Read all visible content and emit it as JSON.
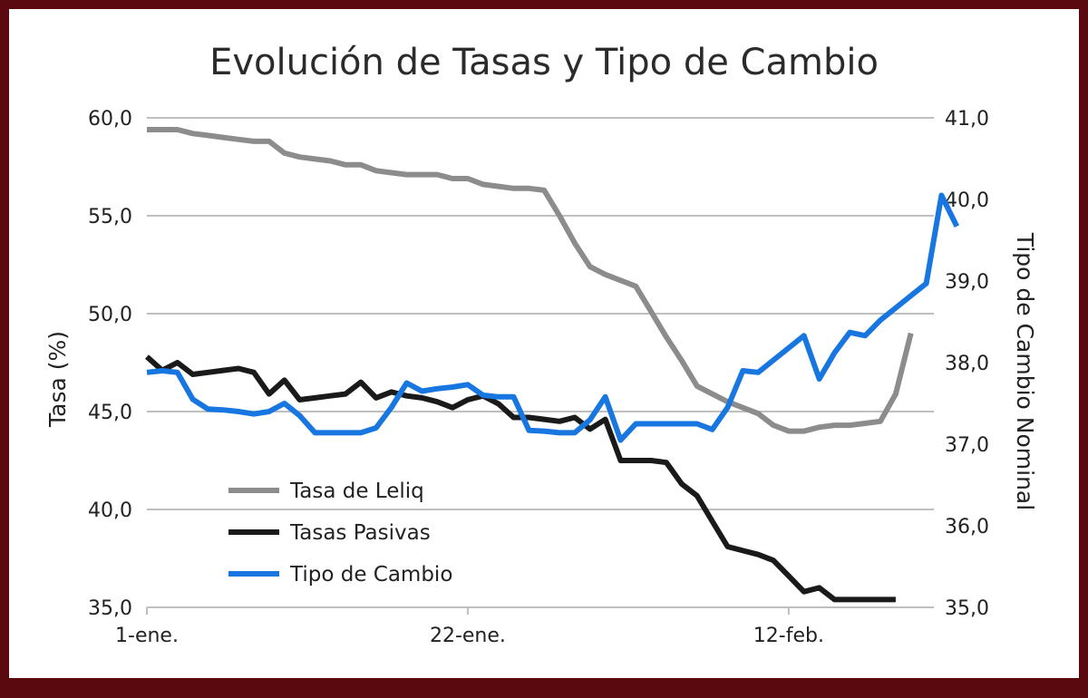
{
  "chart_data": {
    "type": "line",
    "title": "Evolución de Tasas y Tipo de Cambio",
    "ylabel_left": "Tasa (%)",
    "ylabel_right": "Tipo de Cambio Nominal",
    "ylim_left": [
      35,
      60
    ],
    "ylim_right": [
      35,
      41
    ],
    "y_ticks_left": [
      "60,0",
      "55,0",
      "50,0",
      "45,0",
      "40,0",
      "35,0"
    ],
    "y_ticks_right": [
      "41,0",
      "40,0",
      "39,0",
      "38,0",
      "37,0",
      "36,0",
      "35,0"
    ],
    "x_tick_labels": [
      {
        "day": 1,
        "label": "1-ene."
      },
      {
        "day": 22,
        "label": "22-ene."
      },
      {
        "day": 43,
        "label": "12-feb."
      }
    ],
    "x_range_days": [
      1,
      52.5
    ],
    "grid": true,
    "legend_position": "bottom-left",
    "series": [
      {
        "name": "Tasa de Leliq",
        "axis": "left",
        "color": "#8c8c8c",
        "points": [
          [
            1,
            59.4
          ],
          [
            2,
            59.4
          ],
          [
            3,
            59.4
          ],
          [
            4,
            59.2
          ],
          [
            5,
            59.1
          ],
          [
            6,
            59.0
          ],
          [
            7,
            58.9
          ],
          [
            8,
            58.8
          ],
          [
            9,
            58.8
          ],
          [
            10,
            58.2
          ],
          [
            11,
            58.0
          ],
          [
            12,
            57.9
          ],
          [
            13,
            57.8
          ],
          [
            14,
            57.6
          ],
          [
            15,
            57.6
          ],
          [
            16,
            57.3
          ],
          [
            17,
            57.2
          ],
          [
            18,
            57.1
          ],
          [
            19,
            57.1
          ],
          [
            20,
            57.1
          ],
          [
            21,
            56.9
          ],
          [
            22,
            56.9
          ],
          [
            23,
            56.6
          ],
          [
            24,
            56.5
          ],
          [
            25,
            56.4
          ],
          [
            26,
            56.4
          ],
          [
            27,
            56.3
          ],
          [
            28,
            55.0
          ],
          [
            29,
            53.6
          ],
          [
            30,
            52.4
          ],
          [
            31,
            52.0
          ],
          [
            32,
            51.7
          ],
          [
            33,
            51.4
          ],
          [
            34,
            50.1
          ],
          [
            35,
            48.8
          ],
          [
            36,
            47.6
          ],
          [
            37,
            46.3
          ],
          [
            38,
            45.9
          ],
          [
            39,
            45.5
          ],
          [
            40,
            45.2
          ],
          [
            41,
            44.9
          ],
          [
            42,
            44.3
          ],
          [
            43,
            44.0
          ],
          [
            44,
            44.0
          ],
          [
            45,
            44.2
          ],
          [
            46,
            44.3
          ],
          [
            47,
            44.3
          ],
          [
            48,
            44.4
          ],
          [
            49,
            44.5
          ],
          [
            50,
            45.9
          ],
          [
            51,
            49.0
          ]
        ]
      },
      {
        "name": "Tasas Pasivas",
        "axis": "left",
        "color": "#1a1a1a",
        "points": [
          [
            1,
            47.8
          ],
          [
            2,
            47.1
          ],
          [
            3,
            47.5
          ],
          [
            4,
            46.9
          ],
          [
            5,
            47.0
          ],
          [
            6,
            47.1
          ],
          [
            7,
            47.2
          ],
          [
            8,
            47.0
          ],
          [
            9,
            45.9
          ],
          [
            10,
            46.6
          ],
          [
            11,
            45.6
          ],
          [
            12,
            45.7
          ],
          [
            13,
            45.8
          ],
          [
            14,
            45.9
          ],
          [
            15,
            46.5
          ],
          [
            16,
            45.7
          ],
          [
            17,
            46.0
          ],
          [
            18,
            45.8
          ],
          [
            19,
            45.7
          ],
          [
            20,
            45.5
          ],
          [
            21,
            45.2
          ],
          [
            22,
            45.6
          ],
          [
            23,
            45.8
          ],
          [
            24,
            45.4
          ],
          [
            25,
            44.7
          ],
          [
            26,
            44.7
          ],
          [
            27,
            44.6
          ],
          [
            28,
            44.5
          ],
          [
            29,
            44.7
          ],
          [
            30,
            44.1
          ],
          [
            31,
            44.6
          ],
          [
            32,
            42.5
          ],
          [
            33,
            42.5
          ],
          [
            34,
            42.5
          ],
          [
            35,
            42.4
          ],
          [
            36,
            41.3
          ],
          [
            37,
            40.7
          ],
          [
            38,
            39.4
          ],
          [
            39,
            38.1
          ],
          [
            40,
            37.9
          ],
          [
            41,
            37.7
          ],
          [
            42,
            37.4
          ],
          [
            43,
            36.6
          ],
          [
            44,
            35.8
          ],
          [
            45,
            36.0
          ],
          [
            46,
            35.4
          ],
          [
            47,
            35.4
          ],
          [
            48,
            35.4
          ],
          [
            49,
            35.4
          ],
          [
            50,
            35.4
          ]
        ]
      },
      {
        "name": "Tipo de Cambio",
        "axis": "right",
        "color": "#1776e0",
        "points": [
          [
            1,
            37.88
          ],
          [
            2,
            37.9
          ],
          [
            3,
            37.88
          ],
          [
            4,
            37.55
          ],
          [
            5,
            37.43
          ],
          [
            6,
            37.42
          ],
          [
            7,
            37.4
          ],
          [
            8,
            37.37
          ],
          [
            9,
            37.4
          ],
          [
            10,
            37.5
          ],
          [
            11,
            37.35
          ],
          [
            12,
            37.14
          ],
          [
            13,
            37.14
          ],
          [
            14,
            37.14
          ],
          [
            15,
            37.14
          ],
          [
            16,
            37.2
          ],
          [
            17,
            37.45
          ],
          [
            18,
            37.75
          ],
          [
            19,
            37.65
          ],
          [
            20,
            37.68
          ],
          [
            21,
            37.7
          ],
          [
            22,
            37.73
          ],
          [
            23,
            37.6
          ],
          [
            24,
            37.58
          ],
          [
            25,
            37.58
          ],
          [
            26,
            37.17
          ],
          [
            27,
            37.16
          ],
          [
            28,
            37.14
          ],
          [
            29,
            37.14
          ],
          [
            30,
            37.3
          ],
          [
            31,
            37.58
          ],
          [
            32,
            37.05
          ],
          [
            33,
            37.25
          ],
          [
            34,
            37.25
          ],
          [
            35,
            37.25
          ],
          [
            36,
            37.25
          ],
          [
            37,
            37.25
          ],
          [
            38,
            37.18
          ],
          [
            39,
            37.45
          ],
          [
            40,
            37.9
          ],
          [
            41,
            37.88
          ],
          [
            42,
            38.03
          ],
          [
            43,
            38.18
          ],
          [
            44,
            38.33
          ],
          [
            45,
            37.8
          ],
          [
            46,
            38.12
          ],
          [
            47,
            38.37
          ],
          [
            48,
            38.33
          ],
          [
            49,
            38.52
          ],
          [
            50,
            38.67
          ],
          [
            51,
            38.82
          ],
          [
            52,
            38.97
          ],
          [
            53,
            40.05
          ],
          [
            54,
            39.67
          ]
        ]
      }
    ]
  }
}
